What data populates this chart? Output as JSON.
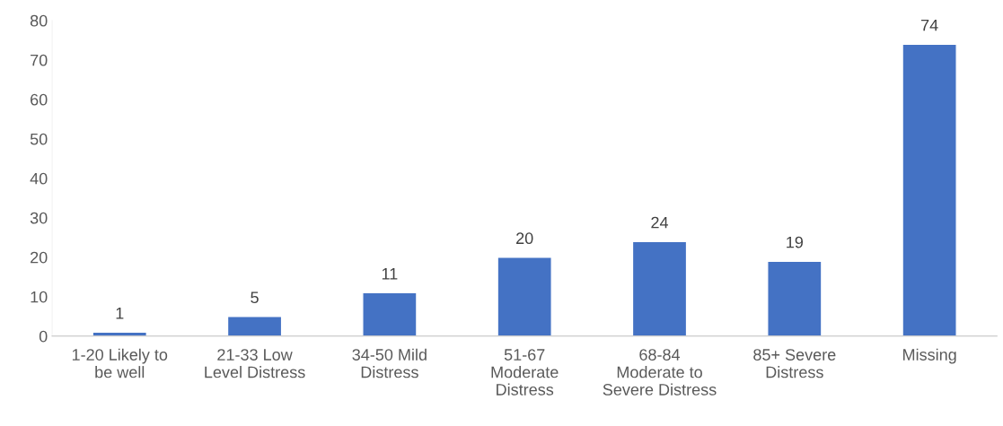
{
  "chart_data": {
    "type": "bar",
    "categories": [
      "1-20 Likely to\nbe well",
      "21-33 Low\nLevel Distress",
      "34-50 Mild\nDistress",
      "51-67\nModerate\nDistress",
      "68-84\nModerate to\nSevere Distress",
      "85+ Severe\nDistress",
      "Missing"
    ],
    "values": [
      1,
      5,
      11,
      20,
      24,
      19,
      74
    ],
    "color": "#4472c4",
    "ylim": [
      0,
      80
    ],
    "yticks": [
      0,
      10,
      20,
      30,
      40,
      50,
      60,
      70,
      80
    ],
    "data_labels": true,
    "grid": false,
    "legend": false
  }
}
